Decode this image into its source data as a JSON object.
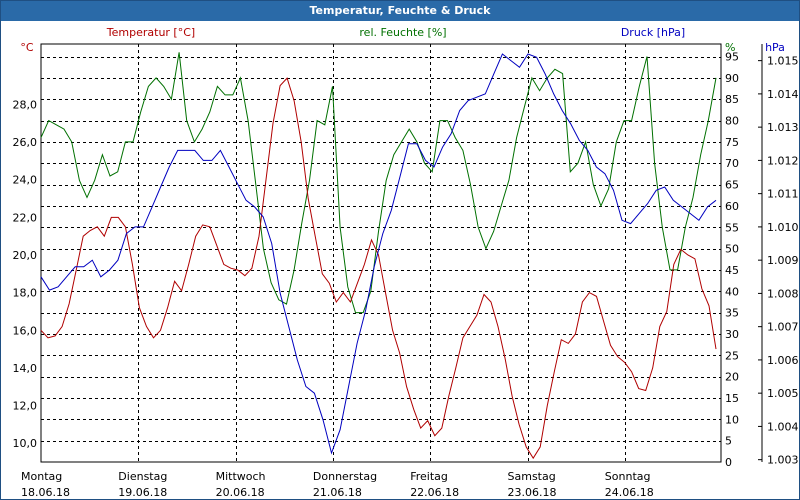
{
  "window": {
    "title": "Temperatur, Feuchte & Druck"
  },
  "chart_data": {
    "type": "line",
    "series": [
      {
        "name": "Temperatur [°C]",
        "unit": "°C",
        "axis": "left",
        "color": "#b00000",
        "ylim": [
          9.0,
          31.0
        ],
        "ticks": [
          "10,0",
          "12,0",
          "14,0",
          "16,0",
          "18,0",
          "20,0",
          "22,0",
          "24,0",
          "26,0",
          "28,0"
        ],
        "values": [
          16.0,
          15.6,
          15.7,
          16.2,
          17.4,
          19.2,
          21.0,
          21.3,
          21.5,
          21.0,
          22.0,
          22.0,
          21.5,
          19.5,
          17.2,
          16.2,
          15.6,
          16.0,
          17.2,
          18.6,
          18.1,
          19.5,
          21.0,
          21.6,
          21.5,
          20.5,
          19.5,
          19.3,
          19.2,
          18.9,
          19.3,
          21.0,
          24.0,
          27.0,
          29.0,
          29.4,
          28.2,
          26.0,
          23.0,
          21.0,
          19.0,
          18.5,
          17.5,
          18.0,
          17.5,
          18.5,
          19.5,
          20.8,
          20.0,
          18.0,
          16.0,
          14.8,
          13.0,
          11.8,
          10.8,
          11.2,
          10.4,
          10.8,
          12.5,
          14.0,
          15.6,
          16.2,
          16.8,
          17.9,
          17.5,
          16.2,
          14.5,
          12.5,
          11.0,
          9.8,
          9.2,
          9.8,
          12.0,
          13.8,
          15.5,
          15.3,
          15.8,
          17.5,
          18.0,
          17.8,
          16.5,
          15.2,
          14.6,
          14.3,
          13.8,
          12.9,
          12.8,
          14.0,
          16.2,
          17.0,
          19.5,
          20.3,
          20.0,
          19.8,
          18.2,
          17.3,
          15.0
        ]
      },
      {
        "name": "rel. Feuchte [%]",
        "unit": "%",
        "axis": "right",
        "color": "#007000",
        "ylim": [
          0,
          97
        ],
        "ticks": [
          "0",
          "5",
          "10",
          "15",
          "20",
          "25",
          "30",
          "35",
          "40",
          "45",
          "50",
          "55",
          "60",
          "65",
          "70",
          "75",
          "80",
          "85",
          "90",
          "95"
        ],
        "values": [
          76,
          80,
          79,
          78,
          75,
          66,
          62,
          66,
          72,
          67,
          68,
          75,
          75,
          82,
          88,
          90,
          88,
          85,
          96,
          80,
          75,
          78,
          82,
          88,
          86,
          86,
          90,
          80,
          65,
          50,
          42,
          38,
          37,
          45,
          56,
          66,
          80,
          79,
          88,
          55,
          41,
          35,
          35,
          40,
          54,
          66,
          72,
          75,
          78,
          75,
          70,
          68,
          80,
          80,
          76,
          73,
          65,
          55,
          50,
          54,
          60,
          66,
          76,
          83,
          90,
          87,
          90,
          92,
          91,
          68,
          70,
          75,
          65,
          60,
          64,
          75,
          80,
          80,
          88,
          95,
          70,
          55,
          45,
          45,
          55,
          62,
          72,
          80,
          90
        ]
      },
      {
        "name": "Druck [hPa]",
        "unit": "hPa",
        "axis": "right2",
        "color": "#0000c0",
        "ylim": [
          1002.93,
          1015.38
        ],
        "ticks": [
          "1.003",
          "1.004",
          "1.005",
          "1.006",
          "1.007",
          "1.008",
          "1.009",
          "1.010",
          "1.011",
          "1.012",
          "1.013",
          "1.014",
          "1.015"
        ],
        "values": [
          1008.5,
          1008.1,
          1008.2,
          1008.5,
          1008.8,
          1008.8,
          1009.0,
          1008.5,
          1008.7,
          1009.0,
          1009.8,
          1010.0,
          1010.0,
          1010.6,
          1011.2,
          1011.8,
          1012.3,
          1012.3,
          1012.3,
          1012.0,
          1012.0,
          1012.3,
          1011.8,
          1011.3,
          1010.8,
          1010.6,
          1010.3,
          1009.5,
          1008.0,
          1007.0,
          1006.0,
          1005.2,
          1005.0,
          1004.2,
          1003.2,
          1003.9,
          1005.2,
          1006.5,
          1007.5,
          1008.8,
          1009.8,
          1010.5,
          1011.5,
          1012.5,
          1012.5,
          1012.0,
          1011.8,
          1012.4,
          1012.8,
          1013.5,
          1013.8,
          1013.9,
          1014.0,
          1014.6,
          1015.2,
          1015.0,
          1014.8,
          1015.2,
          1015.1,
          1014.6,
          1014.0,
          1013.5,
          1013.1,
          1012.6,
          1012.3,
          1011.8,
          1011.6,
          1011.1,
          1010.2,
          1010.1,
          1010.4,
          1010.7,
          1011.1,
          1011.2,
          1010.8,
          1010.6,
          1010.4,
          1010.2,
          1010.6,
          1010.8
        ]
      }
    ],
    "x_ticks": [
      {
        "day": "Montag",
        "date": "18.06.18"
      },
      {
        "day": "Dienstag",
        "date": "19.06.18"
      },
      {
        "day": "Mittwoch",
        "date": "20.06.18"
      },
      {
        "day": "Donnerstag",
        "date": "21.06.18"
      },
      {
        "day": "Freitag",
        "date": "22.06.18"
      },
      {
        "day": "Samstag",
        "date": "23.06.18"
      },
      {
        "day": "Sonntag",
        "date": "24.06.18"
      }
    ],
    "grid": true,
    "legend": "top"
  }
}
